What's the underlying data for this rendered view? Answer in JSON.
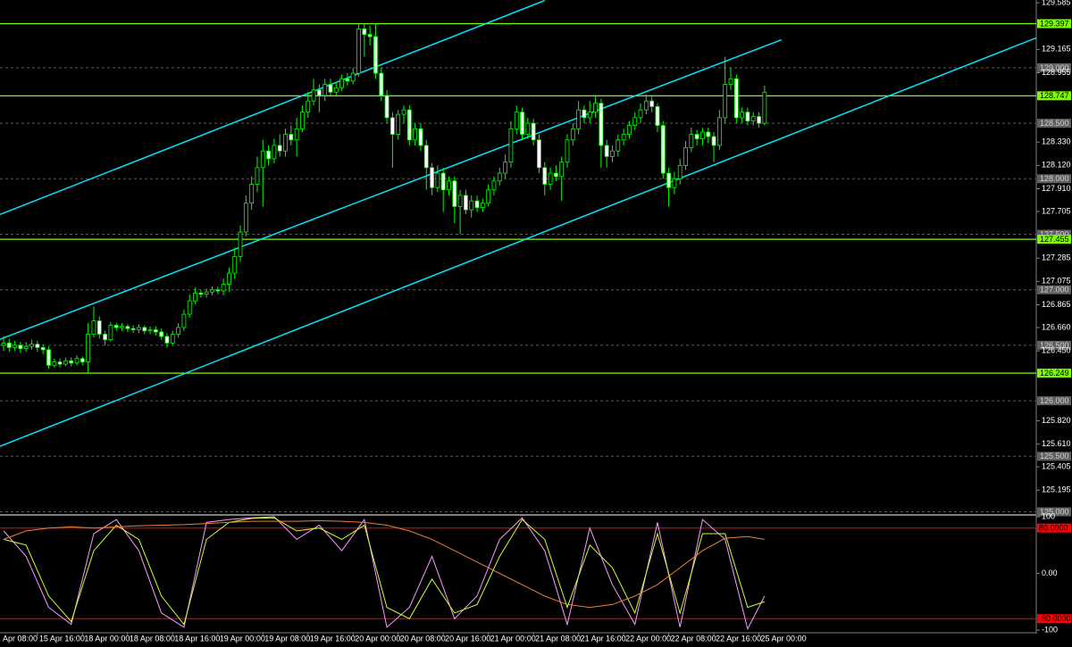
{
  "chart_data": [
    {
      "type": "candlestick",
      "xlim": [
        -0.634,
        183.2
      ],
      "ylim": [
        124.98,
        129.61
      ],
      "xticks": [
        {
          "value": -2,
          "label": "Apr 08:00"
        },
        {
          "value": 6,
          "label": "15 Apr 16:00"
        },
        {
          "value": 14,
          "label": "18 Apr 00:00"
        },
        {
          "value": 22,
          "label": "18 Apr 08:00"
        },
        {
          "value": 30,
          "label": "18 Apr 16:00"
        },
        {
          "value": 38,
          "label": "19 Apr 00:00"
        },
        {
          "value": 46,
          "label": "19 Apr 08:00"
        },
        {
          "value": 54,
          "label": "19 Apr 16:00"
        },
        {
          "value": 62,
          "label": "20 Apr 00:00"
        },
        {
          "value": 70,
          "label": "20 Apr 08:00"
        },
        {
          "value": 78,
          "label": "20 Apr 16:00"
        },
        {
          "value": 86,
          "label": "21 Apr 00:00"
        },
        {
          "value": 94,
          "label": "21 Apr 08:00"
        },
        {
          "value": 102,
          "label": "21 Apr 16:00"
        },
        {
          "value": 110,
          "label": "22 Apr 00:00"
        },
        {
          "value": 118,
          "label": "22 Apr 08:00"
        },
        {
          "value": 126,
          "label": "22 Apr 16:00"
        },
        {
          "value": 134,
          "label": "25 Apr 00:00"
        }
      ],
      "yticks": [
        129.585,
        129.165,
        128.955,
        {
          "value": 128.33,
          "label": "128.330"
        },
        {
          "value": 128.12,
          "label": "128.120"
        },
        {
          "value": 127.91,
          "label": "127.910"
        },
        127.705,
        127.285,
        127.075,
        126.865,
        {
          "value": 126.66,
          "label": "126.660"
        },
        {
          "value": 126.45,
          "label": "126.450"
        },
        {
          "value": 125.82,
          "label": "125.820"
        },
        {
          "value": 125.61,
          "label": "125.610"
        },
        125.405,
        125.195
      ],
      "round_levels": [
        {
          "value": 129,
          "label": "129.000"
        },
        {
          "value": 128.5,
          "label": "128.500"
        },
        {
          "value": 128,
          "label": "128.000"
        },
        {
          "value": 127.5,
          "label": "127.500"
        },
        {
          "value": 127,
          "label": "127.000"
        },
        {
          "value": 126.5,
          "label": "126.500"
        },
        {
          "value": 126,
          "label": "126.000"
        },
        {
          "value": 125.5,
          "label": "125.500"
        },
        {
          "value": 125,
          "label": "125.000"
        }
      ],
      "levels": {
        "color": "#7cfc00",
        "values": [
          129.397,
          128.747,
          127.455,
          126.249
        ]
      },
      "channels": {
        "color": "#00e5ff",
        "lines": [
          {
            "x": [
              -0.634,
              96
            ],
            "y": [
              127.678,
              129.606
            ]
          },
          {
            "x": [
              -0.634,
              138
            ],
            "y": [
              126.554,
              129.252
            ]
          },
          {
            "x": [
              -0.634,
              183.2
            ],
            "y": [
              125.59,
              129.269
            ]
          }
        ]
      },
      "up_color": "#000000",
      "down_color": "#ffffff",
      "wick_color": "#00ff00",
      "open": [
        126.5,
        126.52,
        126.48,
        126.5,
        126.47,
        126.49,
        126.51,
        126.48,
        126.46,
        126.32,
        126.35,
        126.33,
        126.36,
        126.34,
        126.38,
        126.35,
        126.6,
        126.72,
        126.6,
        126.55,
        126.68,
        126.66,
        126.67,
        126.65,
        126.64,
        126.66,
        126.63,
        126.64,
        126.62,
        126.58,
        126.52,
        126.6,
        126.66,
        126.78,
        126.9,
        126.97,
        126.96,
        126.98,
        127.0,
        126.99,
        127.05,
        127.15,
        127.3,
        127.52,
        127.78,
        127.95,
        128.1,
        128.25,
        128.18,
        128.3,
        128.25,
        128.4,
        128.35,
        128.45,
        128.6,
        128.7,
        128.8,
        128.75,
        128.85,
        128.78,
        128.82,
        128.9,
        128.88,
        128.95,
        129.35,
        129.3,
        129.28,
        128.95,
        128.75,
        128.55,
        128.4,
        128.58,
        128.62,
        128.35,
        128.45,
        128.3,
        128.1,
        127.92,
        128.05,
        127.9,
        127.98,
        127.75,
        127.85,
        127.72,
        127.8,
        127.74,
        127.78,
        127.9,
        127.98,
        128.05,
        128.15,
        128.45,
        128.6,
        128.4,
        128.5,
        128.35,
        128.1,
        127.95,
        128.05,
        128.02,
        128.15,
        128.35,
        128.45,
        128.62,
        128.55,
        128.6,
        128.68,
        128.3,
        128.2,
        128.25,
        128.35,
        128.4,
        128.48,
        128.55,
        128.62,
        128.7,
        128.65,
        128.48,
        128.05,
        127.92,
        128.0,
        128.12,
        128.28,
        128.4,
        128.36,
        128.42,
        128.38,
        128.3,
        128.55,
        128.85,
        128.9,
        128.55,
        128.6,
        128.52,
        128.56,
        128.5
      ],
      "high": [
        126.58,
        126.56,
        126.54,
        126.53,
        126.53,
        126.55,
        126.54,
        126.51,
        126.49,
        126.38,
        126.38,
        126.39,
        126.39,
        126.41,
        126.4,
        126.7,
        126.85,
        126.76,
        126.63,
        126.71,
        126.7,
        126.7,
        126.69,
        126.68,
        126.69,
        126.68,
        126.67,
        126.67,
        126.65,
        126.61,
        126.63,
        126.7,
        126.82,
        126.96,
        127.02,
        127.0,
        127.01,
        127.03,
        127.03,
        127.1,
        127.2,
        127.38,
        127.58,
        127.85,
        128.02,
        128.2,
        128.35,
        128.3,
        128.36,
        128.4,
        128.45,
        128.48,
        128.55,
        128.66,
        128.78,
        128.9,
        128.85,
        128.9,
        128.9,
        128.86,
        128.94,
        128.95,
        129.0,
        129.4,
        129.4,
        129.38,
        129.4,
        129.0,
        128.8,
        128.6,
        128.62,
        128.66,
        128.66,
        128.5,
        128.5,
        128.35,
        128.14,
        128.12,
        128.1,
        128.02,
        128.02,
        127.9,
        127.9,
        127.85,
        127.85,
        127.82,
        127.95,
        128.02,
        128.1,
        128.22,
        128.52,
        128.66,
        128.64,
        128.55,
        128.54,
        128.4,
        128.15,
        128.1,
        128.12,
        128.2,
        128.4,
        128.5,
        128.7,
        128.66,
        128.7,
        128.74,
        128.72,
        128.35,
        128.3,
        128.4,
        128.45,
        128.52,
        128.6,
        128.68,
        128.76,
        128.74,
        128.68,
        128.52,
        128.1,
        128.06,
        128.18,
        128.34,
        128.46,
        128.44,
        128.46,
        128.46,
        128.42,
        128.62,
        129.1,
        129.0,
        128.94,
        128.64,
        128.64,
        128.6,
        128.6,
        128.84
      ],
      "low": [
        126.45,
        126.44,
        126.45,
        126.43,
        126.44,
        126.46,
        126.44,
        126.42,
        126.29,
        126.3,
        126.3,
        126.31,
        126.31,
        126.32,
        126.32,
        126.25,
        126.57,
        126.56,
        126.5,
        126.53,
        126.63,
        126.63,
        126.62,
        126.61,
        126.61,
        126.6,
        126.6,
        126.59,
        126.55,
        126.48,
        126.5,
        126.57,
        126.63,
        126.75,
        126.87,
        126.93,
        126.93,
        126.95,
        126.96,
        126.95,
        126.98,
        127.1,
        127.25,
        127.48,
        127.72,
        127.88,
        127.75,
        128.12,
        128.14,
        128.2,
        128.2,
        128.3,
        128.2,
        128.42,
        128.55,
        128.66,
        128.6,
        128.7,
        128.74,
        128.75,
        128.79,
        128.84,
        128.85,
        128.92,
        129.1,
        129.2,
        128.9,
        128.7,
        128.5,
        128.1,
        128.35,
        128.5,
        128.3,
        128.3,
        128.25,
        127.9,
        127.85,
        127.88,
        127.7,
        127.85,
        127.6,
        127.5,
        127.68,
        127.65,
        127.7,
        127.7,
        127.75,
        127.85,
        127.94,
        128.0,
        128.1,
        128.4,
        128.35,
        128.36,
        128.3,
        128.05,
        127.85,
        127.9,
        127.98,
        127.8,
        128.1,
        128.3,
        128.4,
        128.5,
        128.5,
        128.55,
        128.1,
        128.1,
        128.15,
        128.2,
        128.3,
        128.36,
        128.44,
        128.5,
        128.58,
        128.6,
        128.42,
        128.0,
        127.75,
        127.86,
        127.95,
        128.08,
        128.24,
        128.3,
        128.3,
        128.32,
        128.15,
        128.26,
        128.5,
        128.8,
        128.5,
        128.5,
        128.48,
        128.48,
        128.46,
        128.48
      ],
      "close": [
        126.52,
        126.48,
        126.5,
        126.47,
        126.49,
        126.51,
        126.48,
        126.46,
        126.32,
        126.35,
        126.33,
        126.36,
        126.34,
        126.38,
        126.35,
        126.6,
        126.72,
        126.6,
        126.55,
        126.68,
        126.66,
        126.67,
        126.65,
        126.64,
        126.66,
        126.63,
        126.64,
        126.62,
        126.58,
        126.52,
        126.6,
        126.66,
        126.78,
        126.9,
        126.97,
        126.96,
        126.98,
        127.0,
        126.99,
        127.05,
        127.15,
        127.3,
        127.52,
        127.78,
        127.95,
        128.1,
        128.25,
        128.18,
        128.3,
        128.25,
        128.4,
        128.35,
        128.45,
        128.6,
        128.7,
        128.8,
        128.75,
        128.85,
        128.78,
        128.82,
        128.9,
        128.88,
        128.95,
        129.35,
        129.3,
        129.28,
        128.95,
        128.75,
        128.55,
        128.4,
        128.58,
        128.62,
        128.35,
        128.45,
        128.3,
        128.1,
        127.92,
        128.05,
        127.9,
        127.98,
        127.75,
        127.85,
        127.72,
        127.8,
        127.74,
        127.78,
        127.9,
        127.98,
        128.05,
        128.15,
        128.45,
        128.6,
        128.4,
        128.5,
        128.35,
        128.1,
        127.95,
        128.05,
        128.02,
        128.15,
        128.35,
        128.45,
        128.62,
        128.55,
        128.6,
        128.68,
        128.3,
        128.2,
        128.25,
        128.35,
        128.4,
        128.48,
        128.55,
        128.62,
        128.7,
        128.65,
        128.48,
        128.05,
        127.92,
        128.0,
        128.12,
        128.28,
        128.4,
        128.36,
        128.42,
        128.38,
        128.3,
        128.55,
        128.85,
        128.9,
        128.55,
        128.6,
        128.52,
        128.56,
        128.5,
        128.78
      ]
    },
    {
      "type": "line",
      "xlim": [
        -0.634,
        183.2
      ],
      "ylim": [
        -100,
        100
      ],
      "yticks": [
        100,
        {
          "value": 0,
          "label": "0.00"
        },
        -100
      ],
      "levels": {
        "color": "#ff0000",
        "values": [
          {
            "value": 80,
            "label": "80.0000"
          },
          {
            "value": -80,
            "label": "-80.0000"
          }
        ]
      },
      "x": [
        0,
        4,
        8,
        12,
        16,
        20,
        24,
        28,
        32,
        36,
        40,
        44,
        48,
        52,
        56,
        60,
        64,
        68,
        72,
        76,
        80,
        84,
        88,
        92,
        96,
        100,
        104,
        108,
        112,
        116,
        120,
        124,
        128,
        132,
        135
      ],
      "series": [
        {
          "color": "#ff99ff",
          "values": [
            75,
            30,
            -60,
            -90,
            70,
            95,
            40,
            -70,
            -95,
            90,
            95,
            98,
            100,
            60,
            85,
            40,
            95,
            -95,
            -60,
            30,
            -80,
            -40,
            60,
            98,
            40,
            -90,
            80,
            -20,
            -90,
            90,
            -95,
            95,
            60,
            -98,
            -40
          ]
        },
        {
          "color": "#ccff33",
          "values": [
            60,
            50,
            -40,
            -85,
            40,
            85,
            60,
            -40,
            -90,
            60,
            90,
            97,
            98,
            75,
            80,
            60,
            85,
            -60,
            -80,
            -10,
            -70,
            -55,
            30,
            95,
            60,
            -60,
            50,
            10,
            -70,
            70,
            -70,
            70,
            70,
            -60,
            -50
          ]
        },
        {
          "color": "#e8803a",
          "values": [
            60,
            75,
            80,
            82,
            80,
            82,
            84,
            85,
            86,
            88,
            90,
            92,
            92,
            92,
            93,
            92,
            90,
            85,
            75,
            60,
            40,
            20,
            0,
            -20,
            -40,
            -55,
            -60,
            -55,
            -40,
            -20,
            10,
            40,
            62,
            65,
            60
          ]
        }
      ]
    }
  ]
}
